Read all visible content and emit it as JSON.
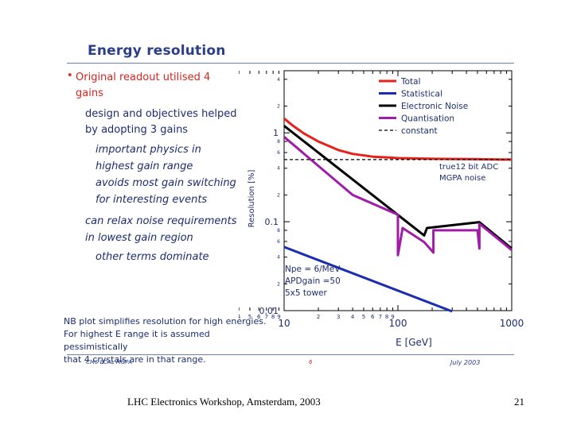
{
  "slide": {
    "title": "Energy resolution",
    "bullet": "Original readout utilised 4 gains",
    "sub_bullet": "design and objectives helped by adopting 3 gains",
    "italics": [
      "important physics in",
      "highest gain range",
      "avoids most gain switching",
      "for interesting events"
    ],
    "italic_mid": [
      "can relax noise requirements",
      "in lowest gain region"
    ],
    "italic_last": "other terms dominate",
    "nb_note": [
      "NB plot simplifies resolution for high energies.",
      "For highest E range it is assumed pessimistically",
      "that 4 crystals are in that range."
    ],
    "footer_left": "CMS ECAL MGPA",
    "footer_mid": "6",
    "footer_right": "July 2003",
    "workshop": "LHC Electronics Workshop, Amsterdam, 2003",
    "page_number": "21"
  },
  "chart_data": {
    "type": "line",
    "xscale": "log",
    "yscale": "log",
    "xlim": [
      10,
      1000
    ],
    "ylim": [
      0.01,
      5
    ],
    "xlabel": "E  [GeV]",
    "ylabel": "Resolution  [%]",
    "x_major_ticks": [
      {
        "v": 10,
        "label": "10"
      },
      {
        "v": 100,
        "label": "100"
      },
      {
        "v": 1000,
        "label": "1000"
      }
    ],
    "x_minor_ticks": [
      2,
      3,
      4,
      5,
      6,
      7,
      8,
      9,
      20,
      30,
      40,
      50,
      60,
      70,
      80,
      90,
      200,
      300,
      400,
      500,
      600,
      700,
      800,
      900
    ],
    "x_minor_labels": [
      "2",
      "3",
      "4",
      "5",
      "6",
      "7",
      "8",
      "9"
    ],
    "y_major_ticks": [
      {
        "v": 1,
        "label": "1"
      },
      {
        "v": 0.1,
        "label": "0.1"
      },
      {
        "v": 0.01,
        "label": "0.01"
      }
    ],
    "y_minor_ticks": [
      4,
      2,
      0.8,
      0.6,
      0.4,
      0.2,
      0.08,
      0.06,
      0.04,
      0.02
    ],
    "y_minor_labels": [
      "4",
      "2",
      "8",
      "6",
      "4",
      "2",
      "8",
      "6",
      "4",
      "2"
    ],
    "annotations": {
      "adc": [
        "true12 bit ADC",
        "MGPA noise"
      ],
      "npe": [
        "Npe = 6/MeV",
        "APDgain =50",
        "5x5 tower"
      ]
    },
    "series": [
      {
        "name": "Total",
        "color": "#e8201a",
        "style": "solid",
        "points": [
          [
            10,
            1.45
          ],
          [
            12,
            1.2
          ],
          [
            15,
            0.98
          ],
          [
            20,
            0.8
          ],
          [
            30,
            0.64
          ],
          [
            40,
            0.58
          ],
          [
            60,
            0.54
          ],
          [
            80,
            0.53
          ],
          [
            100,
            0.52
          ],
          [
            200,
            0.51
          ],
          [
            500,
            0.505
          ],
          [
            1000,
            0.5
          ]
        ]
      },
      {
        "name": "Statistical",
        "color": "#1a2db0",
        "style": "solid",
        "points": [
          [
            10,
            0.052
          ],
          [
            300,
            0.0098
          ]
        ]
      },
      {
        "name": "Electronic Noise",
        "color": "#000000",
        "style": "solid",
        "points": [
          [
            10,
            1.2
          ],
          [
            170,
            0.07
          ],
          [
            180,
            0.085
          ],
          [
            520,
            0.099
          ],
          [
            1000,
            0.05
          ]
        ]
      },
      {
        "name": "Quantisation",
        "color": "#a01ca8",
        "style": "solid",
        "points": [
          [
            10,
            0.9
          ],
          [
            40,
            0.2
          ],
          [
            100,
            0.12
          ],
          [
            100,
            0.042
          ],
          [
            110,
            0.085
          ],
          [
            170,
            0.059
          ],
          [
            205,
            0.045
          ],
          [
            205,
            0.08
          ],
          [
            500,
            0.08
          ],
          [
            520,
            0.05
          ],
          [
            520,
            0.095
          ],
          [
            1000,
            0.048
          ]
        ]
      },
      {
        "name": "constant",
        "color": "#000000",
        "style": "dashed",
        "points": [
          [
            10,
            0.5
          ],
          [
            1000,
            0.5
          ]
        ]
      }
    ]
  }
}
